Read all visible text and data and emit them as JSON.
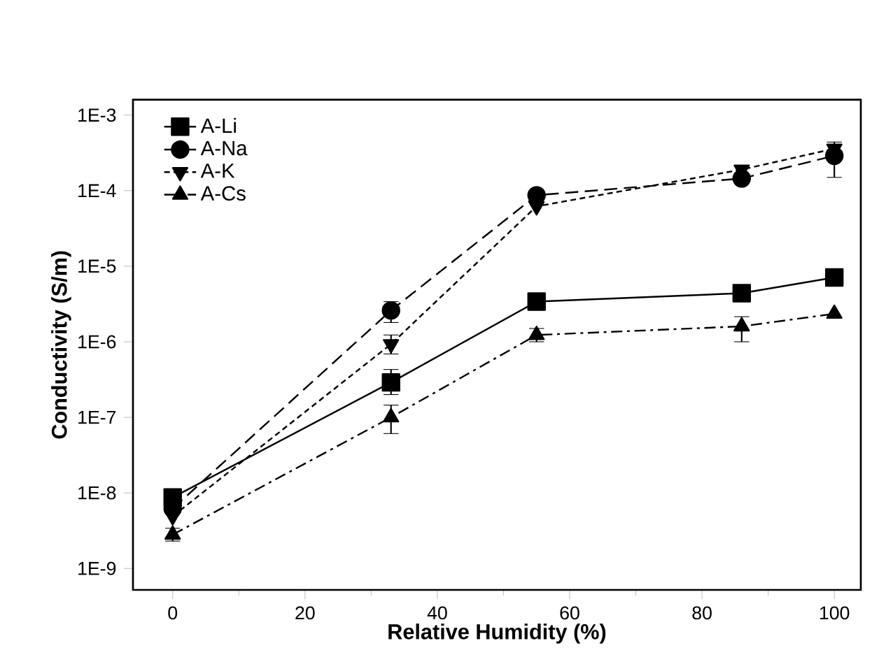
{
  "chart_data": {
    "type": "line",
    "xlabel": "Relative Humidity (%)",
    "ylabel": "Conductivity (S/m)",
    "x": [
      0,
      33,
      55,
      86,
      100
    ],
    "series": [
      {
        "name": "A-Li",
        "color": "#000000",
        "marker": "square",
        "line_style": "solid",
        "values": [
          8.7e-09,
          2.9e-07,
          3.4e-06,
          4.4e-06,
          7.1e-06
        ],
        "errors": [
          null,
          [
            2e-07,
            4.3e-07
          ],
          null,
          null,
          null
        ]
      },
      {
        "name": "A-Na",
        "color": "#000000",
        "marker": "circle",
        "line_style": "dashed",
        "values": [
          6.2e-09,
          2.6e-06,
          8.7e-05,
          0.000145,
          0.00029
        ],
        "errors": [
          null,
          [
            1.8e-06,
            3.4e-06
          ],
          null,
          null,
          [
            0.00015,
            0.00044
          ]
        ]
      },
      {
        "name": "A-K",
        "color": "#000000",
        "marker": "triangle-down",
        "line_style": "dotted",
        "values": [
          4.9e-09,
          9.3e-07,
          6.2e-05,
          0.00019,
          0.00036
        ],
        "errors": [
          null,
          [
            6.9e-07,
            1.23e-06
          ],
          null,
          null,
          null
        ]
      },
      {
        "name": "A-Cs",
        "color": "#000000",
        "marker": "triangle",
        "line_style": "dashdot",
        "values": [
          2.8e-09,
          1e-07,
          1.23e-06,
          1.6e-06,
          2.35e-06
        ],
        "errors": [
          [
            2.3e-09,
            3.4e-09
          ],
          [
            6.1e-08,
            1.45e-07
          ],
          [
            1e-06,
            1.5e-06
          ],
          [
            1e-06,
            2.15e-06
          ],
          null
        ]
      }
    ],
    "log": "y",
    "legend": "top left",
    "grid": false,
    "xlim": [
      -6,
      104
    ],
    "xticks": [
      0,
      20,
      40,
      60,
      80,
      100
    ],
    "ylim": [
      5.2e-10,
      0.0016
    ],
    "yticks": [
      {
        "value": 1e-09,
        "label": "1E-9"
      },
      {
        "value": 1e-08,
        "label": "1E-8"
      },
      {
        "value": 1e-07,
        "label": "1E-7"
      },
      {
        "value": 1e-06,
        "label": "1E-6"
      },
      {
        "value": 1e-05,
        "label": "1E-5"
      },
      {
        "value": 0.0001,
        "label": "1E-4"
      },
      {
        "value": 0.001,
        "label": "1E-3"
      }
    ]
  }
}
